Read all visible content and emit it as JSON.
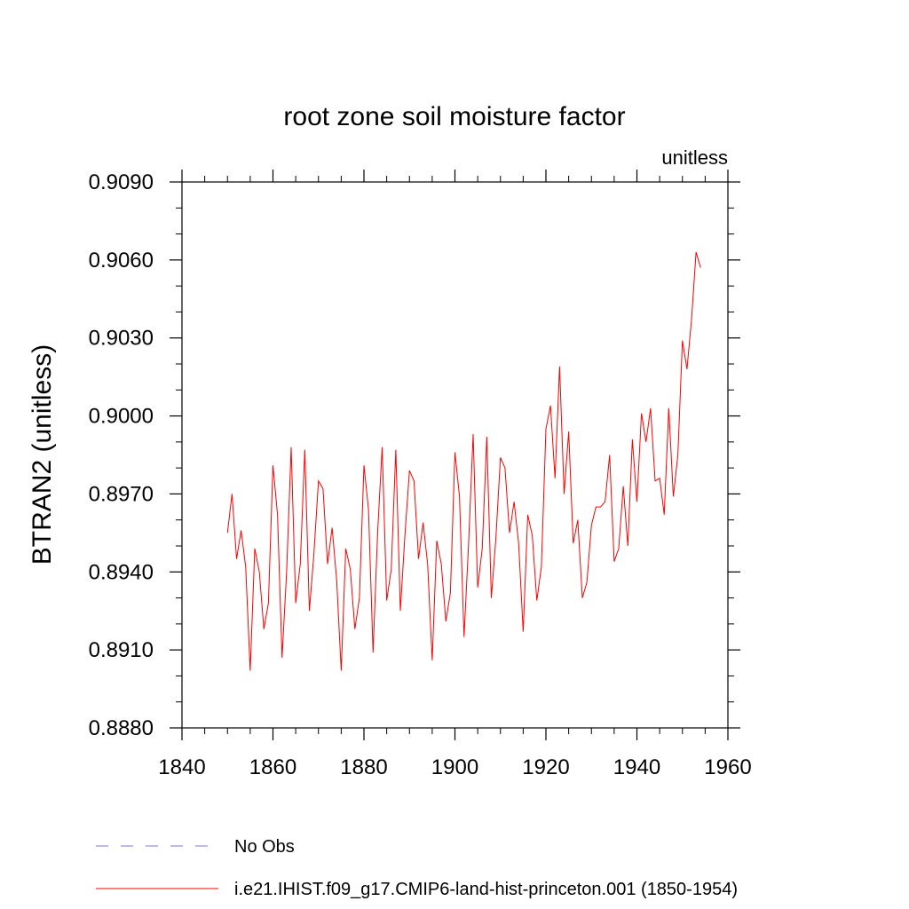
{
  "chart_data": {
    "type": "line",
    "title": "root zone soil moisture factor",
    "units_label": "unitless",
    "ylabel": "BTRAN2  (unitless)",
    "xlabel": "",
    "xlim": [
      1840,
      1960
    ],
    "ylim": [
      0.888,
      0.909
    ],
    "x_ticks": [
      1840,
      1860,
      1880,
      1900,
      1920,
      1940,
      1960
    ],
    "x_tick_labels": [
      "1840",
      "1860",
      "1880",
      "1900",
      "1920",
      "1940",
      "1960"
    ],
    "y_ticks": [
      0.888,
      0.891,
      0.894,
      0.897,
      0.9,
      0.903,
      0.906,
      0.909
    ],
    "y_tick_labels": [
      "0.8880",
      "0.8910",
      "0.8940",
      "0.8970",
      "0.9000",
      "0.9030",
      "0.9060",
      "0.9090"
    ],
    "grid": false,
    "legend_position": "bottom",
    "series": [
      {
        "name": "i.e21.IHIST.f09_g17.CMIP6-land-hist-princeton.001 (1850-1954)",
        "color": "#ff0000",
        "style": "solid",
        "x": [
          1850,
          1851,
          1852,
          1853,
          1854,
          1855,
          1856,
          1857,
          1858,
          1859,
          1860,
          1861,
          1862,
          1863,
          1864,
          1865,
          1866,
          1867,
          1868,
          1869,
          1870,
          1871,
          1872,
          1873,
          1874,
          1875,
          1876,
          1877,
          1878,
          1879,
          1880,
          1881,
          1882,
          1883,
          1884,
          1885,
          1886,
          1887,
          1888,
          1889,
          1890,
          1891,
          1892,
          1893,
          1894,
          1895,
          1896,
          1897,
          1898,
          1899,
          1900,
          1901,
          1902,
          1903,
          1904,
          1905,
          1906,
          1907,
          1908,
          1909,
          1910,
          1911,
          1912,
          1913,
          1914,
          1915,
          1916,
          1917,
          1918,
          1919,
          1920,
          1921,
          1922,
          1923,
          1924,
          1925,
          1926,
          1927,
          1928,
          1929,
          1930,
          1931,
          1932,
          1933,
          1934,
          1935,
          1936,
          1937,
          1938,
          1939,
          1940,
          1941,
          1942,
          1943,
          1944,
          1945,
          1946,
          1947,
          1948,
          1949,
          1950,
          1951,
          1952,
          1953,
          1954
        ],
        "values": [
          0.8955,
          0.897,
          0.8945,
          0.8956,
          0.8942,
          0.8902,
          0.8949,
          0.894,
          0.8918,
          0.8928,
          0.8981,
          0.8962,
          0.8907,
          0.894,
          0.8988,
          0.8928,
          0.8943,
          0.8987,
          0.8925,
          0.8947,
          0.8975,
          0.8972,
          0.8943,
          0.8957,
          0.8937,
          0.8902,
          0.8949,
          0.8941,
          0.8918,
          0.893,
          0.8981,
          0.8964,
          0.8909,
          0.8955,
          0.8988,
          0.8929,
          0.8941,
          0.8987,
          0.8925,
          0.8954,
          0.8979,
          0.8975,
          0.8945,
          0.8959,
          0.8943,
          0.8906,
          0.8952,
          0.8943,
          0.8921,
          0.8932,
          0.8986,
          0.8969,
          0.8915,
          0.8951,
          0.8993,
          0.8934,
          0.8949,
          0.8992,
          0.893,
          0.8953,
          0.8984,
          0.898,
          0.8955,
          0.8967,
          0.8951,
          0.8917,
          0.8962,
          0.8954,
          0.8929,
          0.8942,
          0.8995,
          0.9004,
          0.8976,
          0.9019,
          0.897,
          0.8994,
          0.8951,
          0.896,
          0.893,
          0.8936,
          0.8958,
          0.8965,
          0.8965,
          0.8967,
          0.8985,
          0.8944,
          0.8949,
          0.8973,
          0.895,
          0.8991,
          0.8967,
          0.9001,
          0.899,
          0.9003,
          0.8975,
          0.8976,
          0.8962,
          0.9003,
          0.8969,
          0.8985,
          0.9029,
          0.9018,
          0.9037,
          0.9063,
          0.9057
        ]
      }
    ]
  },
  "legend": [
    {
      "label": "No Obs",
      "color": "#7777cc",
      "style": "dashed"
    },
    {
      "label": "i.e21.IHIST.f09_g17.CMIP6-land-hist-princeton.001 (1850-1954)",
      "color": "#ff0000",
      "style": "solid"
    }
  ]
}
